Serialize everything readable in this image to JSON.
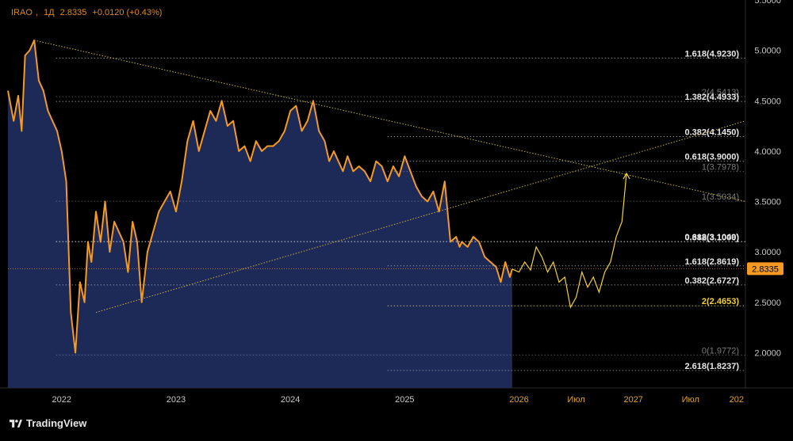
{
  "header": {
    "symbol": "IRAO",
    "interval": "1Д",
    "price": "2.8335",
    "change": "+0.0120 (+0.43%)"
  },
  "brand": {
    "name": "TradingView"
  },
  "colors": {
    "background": "#000000",
    "price_line": "#f59a23",
    "area_fill": "#1f2b5c",
    "projection": "#f2d233",
    "trendline": "#c9b43a",
    "fib_level": "#9aa0a6",
    "axis_text": "#c8c8c8",
    "time_text": "#e0a22a",
    "price_badge": "#f59a23"
  },
  "price_axis": {
    "ticks": [
      "5.5000",
      "5.0000",
      "4.5000",
      "4.0000",
      "3.5000",
      "3.0000",
      "2.5000",
      "2.0000"
    ],
    "current_price_badge": "2.8335"
  },
  "time_axis": {
    "labels": [
      "2022",
      "2023",
      "2024",
      "2025",
      "2026",
      "Июл",
      "2027",
      "Июл",
      "202"
    ]
  },
  "chart_data": [
    {
      "type": "line",
      "name": "IRAO price",
      "y_unit": "RUB",
      "ylim": [
        1.65,
        5.5
      ],
      "x_format": "decimal year",
      "xlim": [
        2021.53,
        2027.98
      ],
      "x": [
        2021.53,
        2021.58,
        2021.62,
        2021.65,
        2021.68,
        2021.72,
        2021.76,
        2021.8,
        2021.84,
        2021.88,
        2021.92,
        2021.96,
        2022.0,
        2022.04,
        2022.08,
        2022.12,
        2022.16,
        2022.18,
        2022.2,
        2022.23,
        2022.26,
        2022.3,
        2022.34,
        2022.38,
        2022.42,
        2022.46,
        2022.5,
        2022.54,
        2022.58,
        2022.62,
        2022.66,
        2022.7,
        2022.72,
        2022.75,
        2022.8,
        2022.85,
        2022.9,
        2022.95,
        2023.0,
        2023.05,
        2023.1,
        2023.15,
        2023.2,
        2023.25,
        2023.3,
        2023.35,
        2023.4,
        2023.45,
        2023.5,
        2023.55,
        2023.6,
        2023.65,
        2023.7,
        2023.75,
        2023.8,
        2023.85,
        2023.9,
        2023.95,
        2024.0,
        2024.05,
        2024.1,
        2024.15,
        2024.2,
        2024.25,
        2024.3,
        2024.34,
        2024.38,
        2024.42,
        2024.46,
        2024.5,
        2024.55,
        2024.6,
        2024.65,
        2024.7,
        2024.75,
        2024.8,
        2024.85,
        2024.9,
        2024.95,
        2025.0,
        2025.05,
        2025.1,
        2025.15,
        2025.2,
        2025.25,
        2025.3,
        2025.35,
        2025.4,
        2025.45,
        2025.48,
        2025.5,
        2025.55,
        2025.6,
        2025.65,
        2025.7,
        2025.75,
        2025.8,
        2025.84,
        2025.88,
        2025.92,
        2025.94
      ],
      "y": [
        4.6,
        4.3,
        4.55,
        4.2,
        4.95,
        5.0,
        5.1,
        4.7,
        4.6,
        4.4,
        4.3,
        4.2,
        4.0,
        3.7,
        2.4,
        2.0,
        2.7,
        2.6,
        2.5,
        3.1,
        2.9,
        3.4,
        3.1,
        3.5,
        3.0,
        3.3,
        3.2,
        3.1,
        2.8,
        3.3,
        3.1,
        2.5,
        2.7,
        3.0,
        3.2,
        3.4,
        3.5,
        3.6,
        3.4,
        3.7,
        4.1,
        4.3,
        4.0,
        4.2,
        4.4,
        4.3,
        4.5,
        4.25,
        4.3,
        4.0,
        4.05,
        3.9,
        4.1,
        4.0,
        4.05,
        4.05,
        4.1,
        4.2,
        4.4,
        4.45,
        4.2,
        4.3,
        4.5,
        4.2,
        4.1,
        3.9,
        4.0,
        3.9,
        3.8,
        3.95,
        3.8,
        3.85,
        3.8,
        3.7,
        3.9,
        3.85,
        3.7,
        3.85,
        3.75,
        3.95,
        3.8,
        3.65,
        3.55,
        3.5,
        3.6,
        3.4,
        3.7,
        3.1,
        3.15,
        3.05,
        3.1,
        3.05,
        3.15,
        3.1,
        2.95,
        2.9,
        2.85,
        2.7,
        2.9,
        2.75,
        2.83
      ]
    },
    {
      "type": "line",
      "name": "projection",
      "x": [
        2025.94,
        2026.0,
        2026.05,
        2026.1,
        2026.15,
        2026.2,
        2026.25,
        2026.3,
        2026.35,
        2026.4,
        2026.45,
        2026.5,
        2026.55,
        2026.6,
        2026.65,
        2026.7,
        2026.75,
        2026.8,
        2026.85,
        2026.9,
        2026.94
      ],
      "y": [
        2.83,
        2.8,
        2.9,
        2.82,
        3.05,
        2.95,
        2.8,
        2.9,
        2.7,
        2.75,
        2.45,
        2.55,
        2.8,
        2.65,
        2.75,
        2.6,
        2.8,
        2.9,
        3.15,
        3.3,
        3.78
      ]
    },
    {
      "type": "line",
      "name": "trendline-upper",
      "x": [
        2021.76,
        2027.98
      ],
      "y": [
        5.1,
        3.5
      ]
    },
    {
      "type": "line",
      "name": "trendline-lower",
      "x": [
        2022.3,
        2027.98
      ],
      "y": [
        2.4,
        4.3
      ]
    },
    {
      "type": "table",
      "name": "fibonacci levels",
      "levels": [
        {
          "label": "1.618(4.9230)",
          "y": 4.923,
          "emph": true,
          "x0": 2021.95
        },
        {
          "label": "2(4.5413)",
          "y": 4.5413,
          "emph": false,
          "x0": 2021.95
        },
        {
          "label": "1.382(4.4933)",
          "y": 4.4933,
          "emph": true,
          "x0": 2021.95
        },
        {
          "label": "0.382(4.1450)",
          "y": 4.145,
          "emph": true,
          "x0": 2024.85
        },
        {
          "label": "0.618(3.9000)",
          "y": 3.9,
          "emph": true,
          "x0": 2024.85
        },
        {
          "label": "1(3.7978)",
          "y": 3.7978,
          "emph": false,
          "x0": 2024.85
        },
        {
          "label": "1(3.5034)",
          "y": 3.5034,
          "emph": false,
          "x0": 2021.95
        },
        {
          "label": "0.618(3.1049)",
          "y": 3.1049,
          "emph": true,
          "x0": 2021.95
        },
        {
          "label": "0.382(3.1000)",
          "y": 3.1,
          "emph": true,
          "x0": 2021.95
        },
        {
          "label": "1.618(2.8619)",
          "y": 2.8619,
          "emph": true,
          "x0": 2024.85
        },
        {
          "label": "0.382(2.6727)",
          "y": 2.6727,
          "emph": true,
          "x0": 2021.95
        },
        {
          "label": "2(2.4653)",
          "y": 2.4653,
          "emph": true,
          "color": "#f2d233",
          "x0": 2024.85
        },
        {
          "label": "0(1.9772)",
          "y": 1.9772,
          "emph": false,
          "x0": 2021.95
        },
        {
          "label": "2.618(1.8237)",
          "y": 1.8237,
          "emph": true,
          "x0": 2024.85
        }
      ]
    }
  ]
}
